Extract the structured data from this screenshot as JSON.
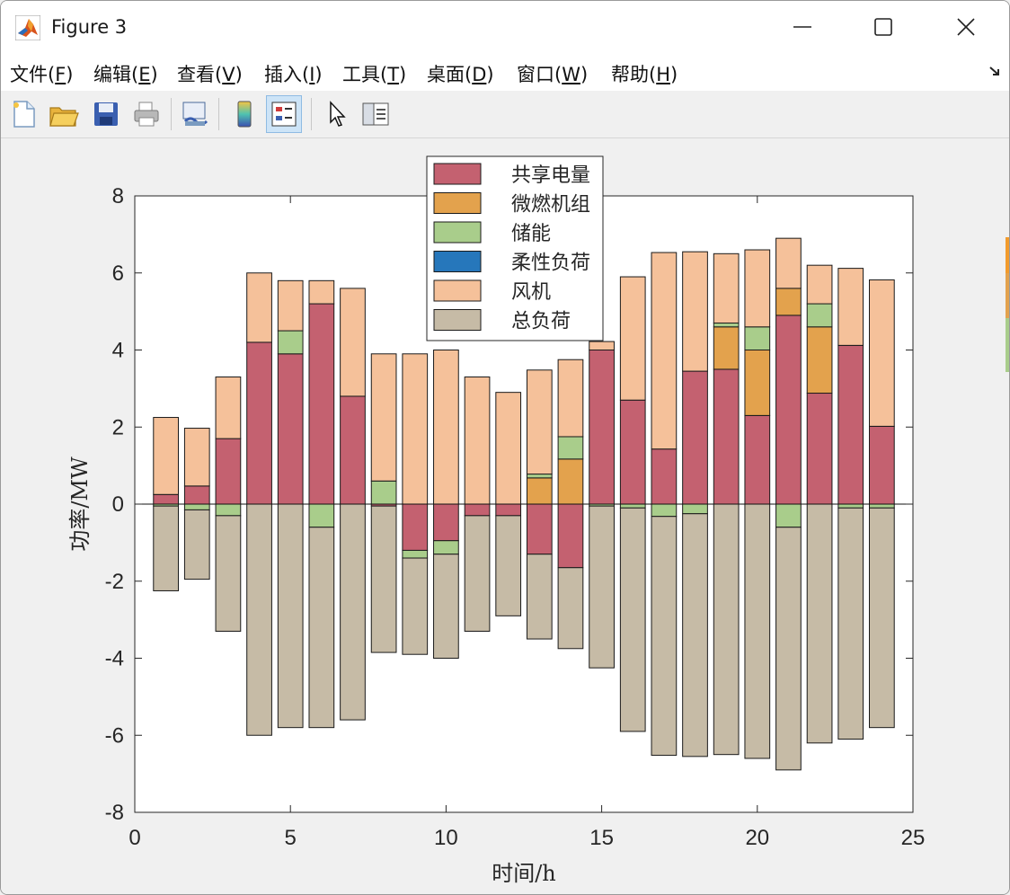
{
  "window": {
    "title": "Figure 3"
  },
  "menu": [
    {
      "pre": "文件(",
      "key": "F",
      "post": ")"
    },
    {
      "pre": "编辑(",
      "key": "E",
      "post": ")"
    },
    {
      "pre": "查看(",
      "key": "V",
      "post": ")"
    },
    {
      "pre": "插入(",
      "key": "I",
      "post": ")"
    },
    {
      "pre": "工具(",
      "key": "T",
      "post": ")"
    },
    {
      "pre": "桌面(",
      "key": "D",
      "post": ")"
    },
    {
      "pre": "窗口(",
      "key": "W",
      "post": ")"
    },
    {
      "pre": "帮助(",
      "key": "H",
      "post": ")"
    }
  ],
  "toolbar": [
    "new-figure-icon",
    "open-file-icon",
    "save-icon",
    "print-icon",
    "link-plot-icon",
    "colorbar-icon",
    "legend-icon",
    "pointer-icon",
    "property-inspector-icon"
  ],
  "chart_data": {
    "type": "bar",
    "stacked": true,
    "xlabel": "时间/h",
    "ylabel": "功率/MW",
    "xlim": [
      0,
      25
    ],
    "ylim": [
      -8,
      8
    ],
    "xticks": [
      0,
      5,
      10,
      15,
      20,
      25
    ],
    "yticks": [
      -8,
      -6,
      -4,
      -2,
      0,
      2,
      4,
      6,
      8
    ],
    "legend_position": "top-center",
    "categories": [
      1,
      2,
      3,
      4,
      5,
      6,
      7,
      8,
      9,
      10,
      11,
      12,
      13,
      14,
      15,
      16,
      17,
      18,
      19,
      20,
      21,
      22,
      23,
      24
    ],
    "series": [
      {
        "name": "共享电量",
        "color": "#c46170",
        "values": [
          0.25,
          0.47,
          1.7,
          4.2,
          3.9,
          5.2,
          2.8,
          -0.05,
          -1.2,
          -0.95,
          -0.3,
          -0.3,
          -1.3,
          -1.65,
          4.0,
          2.7,
          1.43,
          3.45,
          3.5,
          2.3,
          4.9,
          2.88,
          4.12,
          2.02
        ]
      },
      {
        "name": "微燃机组",
        "color": "#e3a24d",
        "values": [
          0,
          0,
          0,
          0,
          0,
          0,
          0,
          0,
          0,
          0,
          0,
          0,
          0.68,
          1.17,
          0,
          0,
          0,
          0,
          1.1,
          1.7,
          0.7,
          1.72,
          0,
          0
        ]
      },
      {
        "name": "储能",
        "color": "#a9cd8b",
        "values": [
          -0.05,
          -0.15,
          -0.3,
          0,
          0.6,
          -0.6,
          0,
          0.6,
          -0.2,
          -0.35,
          0,
          0,
          0.1,
          0.58,
          -0.05,
          -0.1,
          -0.32,
          -0.25,
          0.1,
          0.6,
          -0.6,
          0.6,
          -0.1,
          -0.1
        ]
      },
      {
        "name": "柔性负荷",
        "color": "#2677bb",
        "values": [
          0,
          0,
          0,
          0,
          0,
          0,
          0,
          0,
          0,
          0,
          0,
          0,
          0,
          0,
          0,
          0,
          0,
          0,
          0,
          0,
          0,
          0,
          0,
          0
        ]
      },
      {
        "name": "风机",
        "color": "#f5c19a",
        "values": [
          2.0,
          1.5,
          1.6,
          1.8,
          1.3,
          0.6,
          2.8,
          3.3,
          3.9,
          4.0,
          3.3,
          2.9,
          2.7,
          2.0,
          0.22,
          3.2,
          5.1,
          3.1,
          1.8,
          2.0,
          1.3,
          1.0,
          2.0,
          3.8
        ]
      },
      {
        "name": "总负荷",
        "color": "#c6bba6",
        "values": [
          -2.2,
          -1.8,
          -3.0,
          -6.0,
          -5.8,
          -5.2,
          -5.6,
          -3.8,
          -2.5,
          -2.7,
          -3.0,
          -2.6,
          -2.2,
          -2.1,
          -4.2,
          -5.8,
          -6.2,
          -6.3,
          -6.5,
          -6.6,
          -6.3,
          -6.2,
          -6.0,
          -5.7
        ]
      }
    ],
    "legend_order": [
      "共享电量",
      "微燃机组",
      "储能",
      "柔性负荷",
      "风机",
      "总负荷"
    ]
  }
}
